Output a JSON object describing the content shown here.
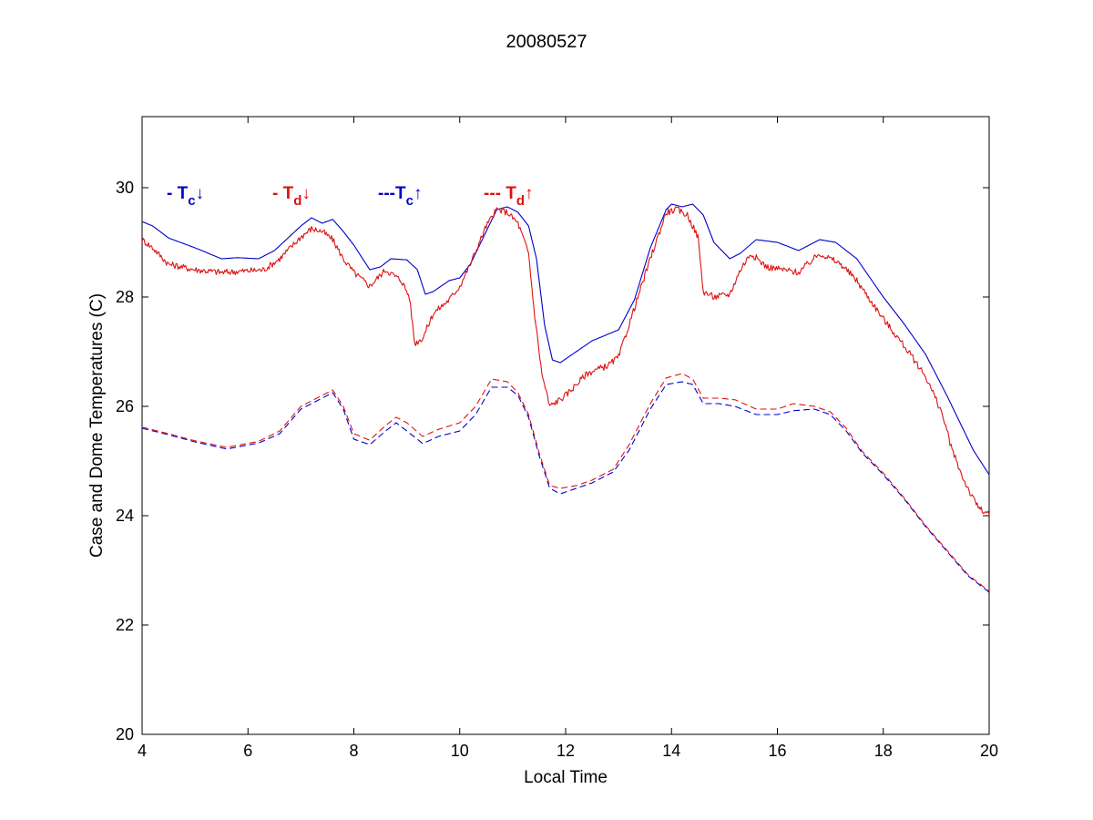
{
  "chart_data": {
    "type": "line",
    "title": "20080527",
    "xlabel": "Local Time",
    "ylabel": "Case and Dome Temperatures (C)",
    "xlim": [
      4,
      20
    ],
    "ylim": [
      20,
      31.3
    ],
    "xticks": [
      4,
      6,
      8,
      10,
      12,
      14,
      16,
      18,
      20
    ],
    "yticks": [
      20,
      22,
      24,
      26,
      28,
      30
    ],
    "grid": false,
    "legend_placement": "top-left (inside plot, horizontal)",
    "colors": {
      "blue": "#0000cc",
      "red": "#dd1111"
    },
    "legend": [
      {
        "dash": "- ",
        "symbol": "T",
        "sub": "c",
        "arrow": "↓",
        "color": "#0000cc"
      },
      {
        "dash": "- ",
        "symbol": "T",
        "sub": "d",
        "arrow": "↓",
        "color": "#dd1111"
      },
      {
        "dash": "---",
        "symbol": "T",
        "sub": "c",
        "arrow": "↑",
        "color": "#0000cc"
      },
      {
        "dash": "--- ",
        "symbol": "T",
        "sub": "d",
        "arrow": "↑",
        "color": "#dd1111"
      }
    ],
    "series": [
      {
        "id": "tc-down",
        "style": "solid",
        "color": "#0000cc",
        "noise": 0,
        "points": [
          [
            4.0,
            29.38
          ],
          [
            4.2,
            29.3
          ],
          [
            4.5,
            29.08
          ],
          [
            5.0,
            28.9
          ],
          [
            5.5,
            28.7
          ],
          [
            5.8,
            28.72
          ],
          [
            6.2,
            28.7
          ],
          [
            6.5,
            28.85
          ],
          [
            7.0,
            29.3
          ],
          [
            7.2,
            29.45
          ],
          [
            7.4,
            29.35
          ],
          [
            7.6,
            29.42
          ],
          [
            7.8,
            29.2
          ],
          [
            8.0,
            28.95
          ],
          [
            8.3,
            28.5
          ],
          [
            8.5,
            28.55
          ],
          [
            8.7,
            28.7
          ],
          [
            9.0,
            28.68
          ],
          [
            9.2,
            28.5
          ],
          [
            9.35,
            28.05
          ],
          [
            9.5,
            28.1
          ],
          [
            9.8,
            28.3
          ],
          [
            10.0,
            28.35
          ],
          [
            10.2,
            28.6
          ],
          [
            10.5,
            29.2
          ],
          [
            10.7,
            29.6
          ],
          [
            10.9,
            29.65
          ],
          [
            11.1,
            29.55
          ],
          [
            11.3,
            29.3
          ],
          [
            11.45,
            28.7
          ],
          [
            11.6,
            27.5
          ],
          [
            11.75,
            26.85
          ],
          [
            11.9,
            26.8
          ],
          [
            12.2,
            27.0
          ],
          [
            12.5,
            27.2
          ],
          [
            13.0,
            27.4
          ],
          [
            13.3,
            27.95
          ],
          [
            13.6,
            28.9
          ],
          [
            13.9,
            29.6
          ],
          [
            14.0,
            29.7
          ],
          [
            14.2,
            29.65
          ],
          [
            14.4,
            29.7
          ],
          [
            14.6,
            29.5
          ],
          [
            14.8,
            29.0
          ],
          [
            15.1,
            28.7
          ],
          [
            15.3,
            28.8
          ],
          [
            15.6,
            29.05
          ],
          [
            16.0,
            29.0
          ],
          [
            16.4,
            28.85
          ],
          [
            16.8,
            29.05
          ],
          [
            17.1,
            29.0
          ],
          [
            17.5,
            28.7
          ],
          [
            18.0,
            28.0
          ],
          [
            18.4,
            27.5
          ],
          [
            18.8,
            26.95
          ],
          [
            19.2,
            26.2
          ],
          [
            19.5,
            25.6
          ],
          [
            19.7,
            25.2
          ],
          [
            20.0,
            24.75
          ]
        ]
      },
      {
        "id": "td-down",
        "style": "solid",
        "color": "#dd1111",
        "noise": 0.06,
        "points": [
          [
            4.0,
            29.05
          ],
          [
            4.2,
            28.9
          ],
          [
            4.5,
            28.6
          ],
          [
            5.0,
            28.5
          ],
          [
            5.5,
            28.45
          ],
          [
            6.0,
            28.48
          ],
          [
            6.3,
            28.5
          ],
          [
            6.6,
            28.7
          ],
          [
            7.0,
            29.1
          ],
          [
            7.2,
            29.25
          ],
          [
            7.4,
            29.2
          ],
          [
            7.6,
            29.05
          ],
          [
            7.8,
            28.7
          ],
          [
            8.0,
            28.45
          ],
          [
            8.3,
            28.2
          ],
          [
            8.6,
            28.5
          ],
          [
            8.9,
            28.3
          ],
          [
            9.05,
            28.0
          ],
          [
            9.15,
            27.15
          ],
          [
            9.3,
            27.25
          ],
          [
            9.5,
            27.7
          ],
          [
            9.8,
            27.95
          ],
          [
            10.0,
            28.2
          ],
          [
            10.2,
            28.6
          ],
          [
            10.5,
            29.3
          ],
          [
            10.7,
            29.6
          ],
          [
            10.9,
            29.55
          ],
          [
            11.1,
            29.35
          ],
          [
            11.3,
            28.8
          ],
          [
            11.4,
            27.8
          ],
          [
            11.55,
            26.6
          ],
          [
            11.7,
            26.0
          ],
          [
            12.0,
            26.2
          ],
          [
            12.4,
            26.6
          ],
          [
            12.8,
            26.75
          ],
          [
            13.0,
            26.9
          ],
          [
            13.3,
            27.8
          ],
          [
            13.6,
            28.7
          ],
          [
            13.9,
            29.55
          ],
          [
            14.1,
            29.6
          ],
          [
            14.3,
            29.5
          ],
          [
            14.5,
            29.1
          ],
          [
            14.6,
            28.1
          ],
          [
            14.8,
            28.0
          ],
          [
            15.1,
            28.05
          ],
          [
            15.3,
            28.5
          ],
          [
            15.5,
            28.8
          ],
          [
            15.8,
            28.55
          ],
          [
            16.1,
            28.5
          ],
          [
            16.4,
            28.45
          ],
          [
            16.8,
            28.8
          ],
          [
            17.2,
            28.6
          ],
          [
            17.5,
            28.3
          ],
          [
            18.0,
            27.6
          ],
          [
            18.4,
            27.1
          ],
          [
            18.8,
            26.55
          ],
          [
            19.1,
            25.9
          ],
          [
            19.3,
            25.2
          ],
          [
            19.5,
            24.7
          ],
          [
            19.7,
            24.3
          ],
          [
            19.85,
            24.1
          ],
          [
            20.0,
            24.02
          ]
        ]
      },
      {
        "id": "tc-up",
        "style": "dashed",
        "color": "#0000cc",
        "noise": 0,
        "points": [
          [
            4.0,
            25.6
          ],
          [
            4.5,
            25.48
          ],
          [
            5.0,
            25.35
          ],
          [
            5.6,
            25.22
          ],
          [
            6.2,
            25.33
          ],
          [
            6.6,
            25.5
          ],
          [
            7.0,
            25.95
          ],
          [
            7.3,
            26.1
          ],
          [
            7.6,
            26.25
          ],
          [
            7.8,
            25.95
          ],
          [
            8.0,
            25.4
          ],
          [
            8.3,
            25.3
          ],
          [
            8.6,
            25.55
          ],
          [
            8.8,
            25.7
          ],
          [
            9.0,
            25.55
          ],
          [
            9.3,
            25.32
          ],
          [
            9.6,
            25.45
          ],
          [
            10.0,
            25.55
          ],
          [
            10.3,
            25.85
          ],
          [
            10.6,
            26.35
          ],
          [
            10.9,
            26.35
          ],
          [
            11.1,
            26.2
          ],
          [
            11.3,
            25.8
          ],
          [
            11.5,
            25.1
          ],
          [
            11.7,
            24.5
          ],
          [
            11.9,
            24.4
          ],
          [
            12.2,
            24.5
          ],
          [
            12.5,
            24.6
          ],
          [
            12.9,
            24.8
          ],
          [
            13.2,
            25.2
          ],
          [
            13.6,
            25.95
          ],
          [
            13.9,
            26.4
          ],
          [
            14.2,
            26.45
          ],
          [
            14.4,
            26.4
          ],
          [
            14.6,
            26.05
          ],
          [
            14.9,
            26.05
          ],
          [
            15.2,
            26.0
          ],
          [
            15.6,
            25.85
          ],
          [
            16.0,
            25.85
          ],
          [
            16.3,
            25.92
          ],
          [
            16.7,
            25.95
          ],
          [
            17.0,
            25.85
          ],
          [
            17.3,
            25.55
          ],
          [
            17.6,
            25.15
          ],
          [
            18.0,
            24.75
          ],
          [
            18.4,
            24.3
          ],
          [
            18.8,
            23.8
          ],
          [
            19.2,
            23.35
          ],
          [
            19.6,
            22.9
          ],
          [
            20.0,
            22.6
          ]
        ]
      },
      {
        "id": "td-up",
        "style": "dashed",
        "color": "#dd1111",
        "noise": 0,
        "points": [
          [
            4.0,
            25.62
          ],
          [
            4.5,
            25.5
          ],
          [
            5.0,
            25.37
          ],
          [
            5.6,
            25.25
          ],
          [
            6.2,
            25.36
          ],
          [
            6.6,
            25.55
          ],
          [
            7.0,
            26.0
          ],
          [
            7.3,
            26.15
          ],
          [
            7.6,
            26.3
          ],
          [
            7.8,
            26.0
          ],
          [
            8.0,
            25.5
          ],
          [
            8.3,
            25.38
          ],
          [
            8.6,
            25.65
          ],
          [
            8.8,
            25.8
          ],
          [
            9.0,
            25.7
          ],
          [
            9.3,
            25.45
          ],
          [
            9.6,
            25.58
          ],
          [
            10.0,
            25.7
          ],
          [
            10.3,
            26.0
          ],
          [
            10.6,
            26.5
          ],
          [
            10.9,
            26.45
          ],
          [
            11.1,
            26.25
          ],
          [
            11.3,
            25.85
          ],
          [
            11.5,
            25.15
          ],
          [
            11.7,
            24.55
          ],
          [
            11.9,
            24.5
          ],
          [
            12.2,
            24.55
          ],
          [
            12.5,
            24.65
          ],
          [
            12.9,
            24.85
          ],
          [
            13.2,
            25.3
          ],
          [
            13.6,
            26.05
          ],
          [
            13.9,
            26.52
          ],
          [
            14.2,
            26.6
          ],
          [
            14.4,
            26.5
          ],
          [
            14.6,
            26.15
          ],
          [
            14.9,
            26.15
          ],
          [
            15.2,
            26.12
          ],
          [
            15.6,
            25.95
          ],
          [
            16.0,
            25.95
          ],
          [
            16.3,
            26.05
          ],
          [
            16.7,
            26.0
          ],
          [
            17.0,
            25.9
          ],
          [
            17.3,
            25.6
          ],
          [
            17.6,
            25.18
          ],
          [
            18.0,
            24.78
          ],
          [
            18.4,
            24.32
          ],
          [
            18.8,
            23.82
          ],
          [
            19.2,
            23.37
          ],
          [
            19.6,
            22.92
          ],
          [
            20.0,
            22.62
          ]
        ]
      }
    ]
  }
}
